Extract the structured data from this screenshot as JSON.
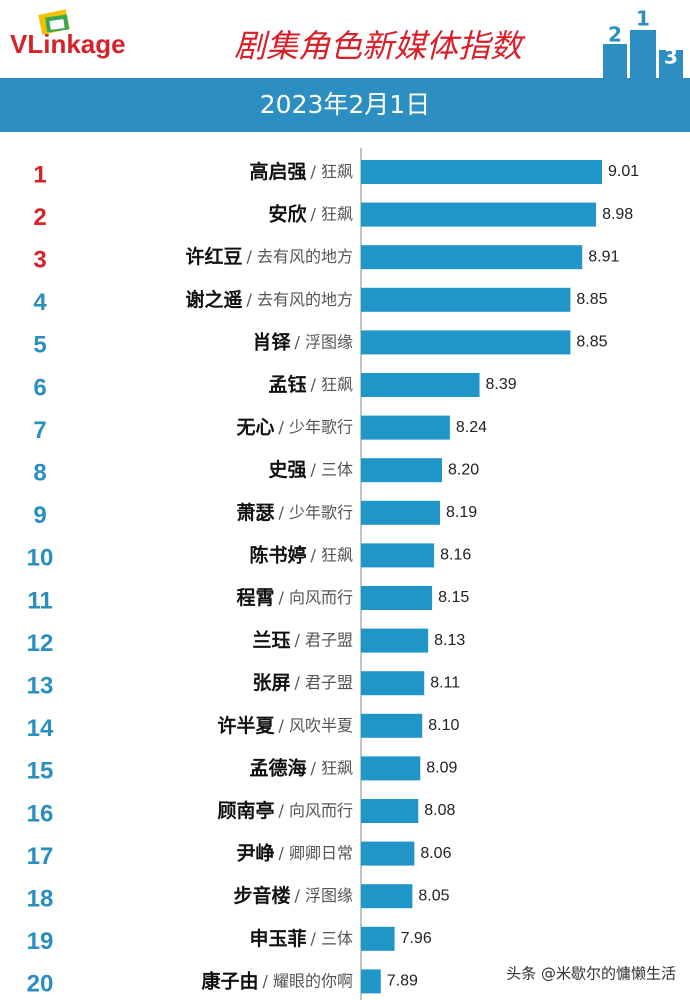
{
  "chart_data": {
    "type": "bar",
    "brand": "VLinkage",
    "title": "剧集角色新媒体指数",
    "subtitle": "2023年2月1日",
    "podium": [
      "2",
      "1",
      "3"
    ],
    "ranks": [
      1,
      2,
      3,
      4,
      5,
      6,
      7,
      8,
      9,
      10,
      11,
      12,
      13,
      14,
      15,
      16,
      17,
      18,
      19,
      20
    ],
    "categories": [
      "高启强",
      "安欣",
      "许红豆",
      "谢之遥",
      "肖铎",
      "孟钰",
      "无心",
      "史强",
      "萧瑟",
      "陈书婷",
      "程霄",
      "兰珏",
      "张屏",
      "许半夏",
      "孟德海",
      "顾南亭",
      "尹峥",
      "步音楼",
      "申玉菲",
      "康子由"
    ],
    "shows": [
      "/ 狂飙",
      "/ 狂飙",
      "/ 去有风的地方",
      "/ 去有风的地方",
      "/ 浮图缘",
      "/ 狂飙",
      "/ 少年歌行",
      "/ 三体",
      "/ 少年歌行",
      "/ 狂飙",
      "/ 向风而行",
      "/ 君子盟",
      "/ 君子盟",
      "/ 风吹半夏",
      "/ 狂飙",
      "/ 向风而行",
      "/ 卿卿日常",
      "/ 浮图缘",
      "/ 三体",
      "/ 耀眼的你啊"
    ],
    "values": [
      9.01,
      8.98,
      8.91,
      8.85,
      8.85,
      8.39,
      8.24,
      8.2,
      8.19,
      8.16,
      8.15,
      8.13,
      8.11,
      8.1,
      8.09,
      8.08,
      8.06,
      8.05,
      7.96,
      7.89
    ],
    "value_labels": [
      "9.01",
      "8.98",
      "8.91",
      "8.85",
      "8.85",
      "8.39",
      "8.24",
      "8.20",
      "8.19",
      "8.16",
      "8.15",
      "8.13",
      "8.11",
      "8.10",
      "8.09",
      "8.08",
      "8.06",
      "8.05",
      "7.96",
      "7.89"
    ],
    "color": "#1f95c8",
    "xlim": [
      7.79,
      9.01
    ],
    "watermark": "头条 @米歇尔的慵懒生活"
  }
}
